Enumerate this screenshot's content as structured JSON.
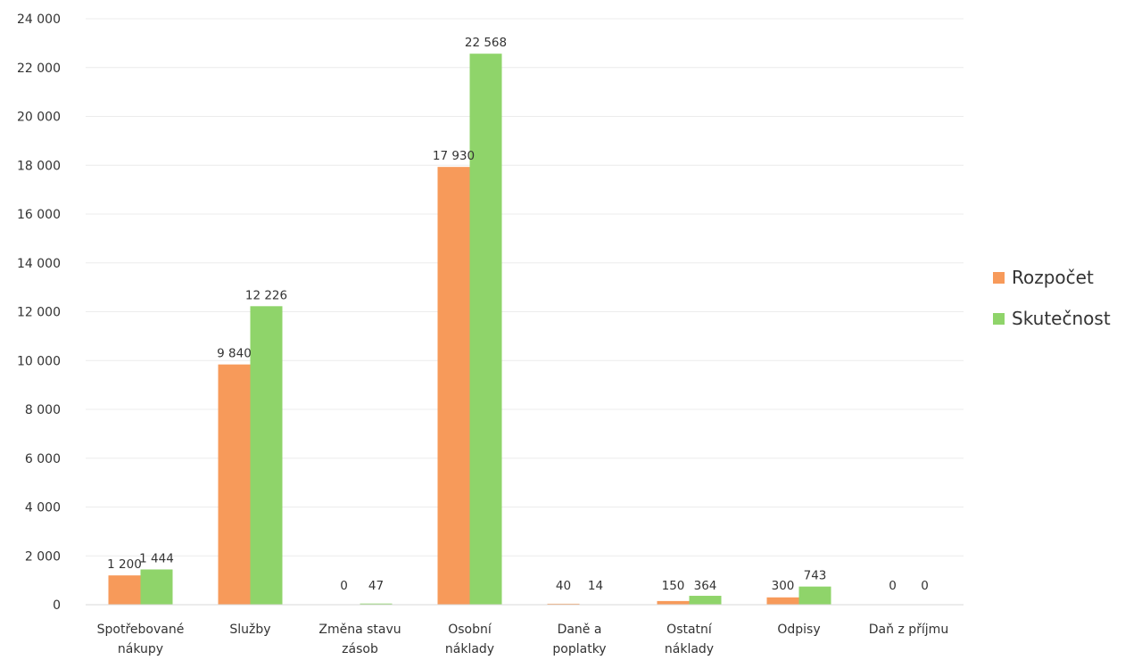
{
  "chart_data": {
    "type": "bar",
    "categories": [
      [
        "Spotřebované",
        "nákupy"
      ],
      [
        "Služby"
      ],
      [
        "Změna stavu",
        "zásob"
      ],
      [
        "Osobní",
        "náklady"
      ],
      [
        "Daně a",
        "poplatky"
      ],
      [
        "Ostatní",
        "náklady"
      ],
      [
        "Odpisy"
      ],
      [
        "Daň z příjmu"
      ]
    ],
    "series": [
      {
        "name": "Rozpočet",
        "color": "#f79a5a",
        "values": [
          1200,
          9840,
          0,
          17930,
          40,
          150,
          300,
          0
        ],
        "labels": [
          "1 200",
          "9 840",
          "0",
          "17 930",
          "40",
          "150",
          "300",
          "0"
        ]
      },
      {
        "name": "Skutečnost",
        "color": "#8fd46a",
        "values": [
          1444,
          12226,
          47,
          22568,
          14,
          364,
          743,
          0
        ],
        "labels": [
          "1 444",
          "12 226",
          "47",
          "22 568",
          "14",
          "364",
          "743",
          "0"
        ]
      }
    ],
    "yticks": [
      0,
      2000,
      4000,
      6000,
      8000,
      10000,
      12000,
      14000,
      16000,
      18000,
      20000,
      22000,
      24000
    ],
    "ytick_labels": [
      "0",
      "2 000",
      "4 000",
      "6 000",
      "8 000",
      "10 000",
      "12 000",
      "14 000",
      "16 000",
      "18 000",
      "20 000",
      "22 000",
      "24 000"
    ],
    "ylim": [
      0,
      24000
    ],
    "title": "",
    "xlabel": "",
    "ylabel": "",
    "grid": true,
    "legend_position": "right"
  }
}
